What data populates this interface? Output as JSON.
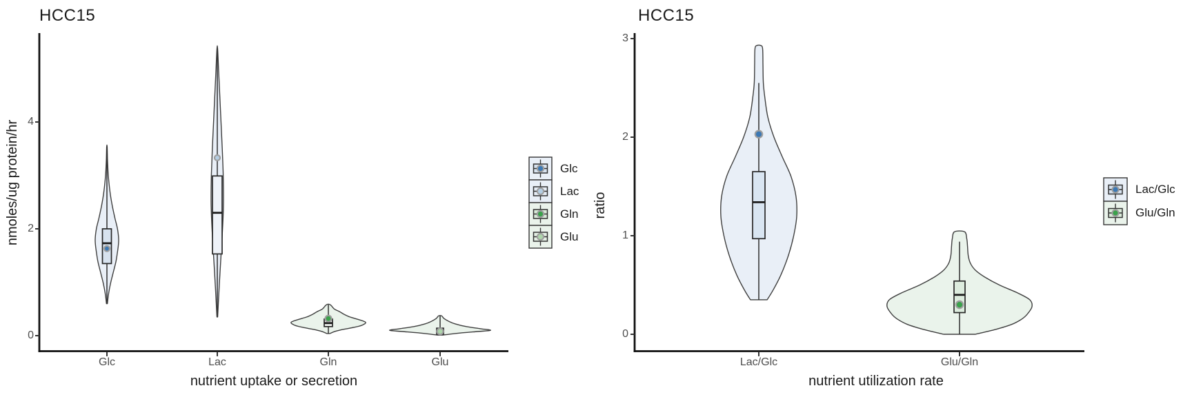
{
  "colors": {
    "axis": "#111111",
    "tick_mark": "#333333",
    "tick_label": "#4d4d4d",
    "text": "#1a1a1a",
    "violin_outline": "#3e3e3e",
    "box_stroke": "#272727",
    "median": "#1a1a1a",
    "mean_dot_ring": "#9e9e9e",
    "blue_fill": "#e9eff7",
    "green_fill": "#eaf3eb",
    "blue_dot": "#3c79b5",
    "light_blue_dot": "#b4cee4",
    "green_dot": "#3aa24b",
    "light_green_dot": "#add5aa"
  },
  "chart_data": [
    {
      "type": "violin",
      "title": "HCC15",
      "xlabel": "nutrient uptake or secretion",
      "ylabel": "nmoles/ug protein/hr",
      "ylim": [
        0,
        5.6
      ],
      "yticks": [
        0,
        2,
        4
      ],
      "grid": false,
      "legend_position": "right",
      "categories": [
        "Glc",
        "Lac",
        "Gln",
        "Glu"
      ],
      "series": [
        {
          "name": "Glc",
          "fill": "#e9eff7",
          "box_fill": "#d7e2ef",
          "mean_color": "#3c79b5",
          "stats": {
            "min": 0.6,
            "q1": 1.35,
            "median": 1.73,
            "q3": 2.0,
            "max": 3.54,
            "mean": 1.63
          },
          "whisker_low": 0.6,
          "whisker_high": 3.54,
          "density_profile": [
            [
              0.6,
              0.04
            ],
            [
              0.75,
              0.12
            ],
            [
              0.95,
              0.28
            ],
            [
              1.15,
              0.5
            ],
            [
              1.4,
              0.78
            ],
            [
              1.65,
              0.95
            ],
            [
              1.8,
              1.0
            ],
            [
              2.0,
              0.9
            ],
            [
              2.2,
              0.68
            ],
            [
              2.45,
              0.44
            ],
            [
              2.7,
              0.26
            ],
            [
              3.0,
              0.12
            ],
            [
              3.3,
              0.05
            ],
            [
              3.54,
              0.02
            ]
          ]
        },
        {
          "name": "Lac",
          "fill": "#e9eff7",
          "box_fill": "#eef2f8",
          "mean_color": "#b4cee4",
          "stats": {
            "min": 0.35,
            "q1": 1.53,
            "median": 2.3,
            "q3": 2.99,
            "max": 5.38,
            "mean": 3.33
          },
          "whisker_low": 0.35,
          "whisker_high": 5.38,
          "density_profile": [
            [
              0.35,
              0.06
            ],
            [
              0.9,
              0.3
            ],
            [
              1.5,
              0.6
            ],
            [
              2.0,
              0.85
            ],
            [
              2.5,
              1.0
            ],
            [
              3.0,
              0.95
            ],
            [
              3.5,
              0.8
            ],
            [
              4.0,
              0.6
            ],
            [
              4.5,
              0.4
            ],
            [
              5.0,
              0.2
            ],
            [
              5.38,
              0.05
            ]
          ]
        },
        {
          "name": "Gln",
          "fill": "#eaf3eb",
          "box_fill": "#f4f8f4",
          "mean_color": "#3aa24b",
          "stats": {
            "min": 0.04,
            "q1": 0.17,
            "median": 0.235,
            "q3": 0.31,
            "max": 0.58,
            "mean": 0.32
          },
          "whisker_low": 0.04,
          "whisker_high": 0.58,
          "density_profile": [
            [
              0.04,
              0.04
            ],
            [
              0.08,
              0.18
            ],
            [
              0.12,
              0.42
            ],
            [
              0.16,
              0.72
            ],
            [
              0.2,
              0.92
            ],
            [
              0.25,
              1.0
            ],
            [
              0.3,
              0.82
            ],
            [
              0.35,
              0.58
            ],
            [
              0.4,
              0.42
            ],
            [
              0.45,
              0.3
            ],
            [
              0.5,
              0.16
            ],
            [
              0.58,
              0.05
            ]
          ]
        },
        {
          "name": "Glu",
          "fill": "#eaf3eb",
          "box_fill": "#eaf2ea",
          "mean_color": "#add5aa",
          "stats": {
            "min": 0.01,
            "q1": 0.03,
            "median": 0.085,
            "q3": 0.14,
            "max": 0.37,
            "mean": 0.08
          },
          "whisker_low": 0.01,
          "whisker_high": 0.37,
          "density_profile": [
            [
              0.01,
              0.05
            ],
            [
              0.04,
              0.3
            ],
            [
              0.07,
              0.65
            ],
            [
              0.1,
              1.0
            ],
            [
              0.13,
              0.8
            ],
            [
              0.17,
              0.52
            ],
            [
              0.22,
              0.3
            ],
            [
              0.27,
              0.17
            ],
            [
              0.32,
              0.08
            ],
            [
              0.37,
              0.03
            ]
          ]
        }
      ],
      "legend": [
        {
          "label": "Glc",
          "swatch_bg": "#e9eff7",
          "box_fill": "#d7e2ef",
          "dot_color": "#3c79b5"
        },
        {
          "label": "Lac",
          "swatch_bg": "#e9eff7",
          "box_fill": "#e6edf6",
          "dot_color": "#b4cee4"
        },
        {
          "label": "Gln",
          "swatch_bg": "#eaf3eb",
          "box_fill": "#d9ead9",
          "dot_color": "#3aa24b"
        },
        {
          "label": "Glu",
          "swatch_bg": "#eaf3eb",
          "box_fill": "#e4f0e4",
          "dot_color": "#add5aa"
        }
      ]
    },
    {
      "type": "violin",
      "title": "HCC15",
      "xlabel": "nutrient utilization rate",
      "ylabel": "ratio",
      "ylim": [
        0,
        3.2
      ],
      "yticks": [
        0,
        1,
        2,
        3
      ],
      "grid": false,
      "legend_position": "right",
      "categories": [
        "Lac/Glc",
        "Glu/Gln"
      ],
      "series": [
        {
          "name": "Lac/Glc",
          "fill": "#e9eff7",
          "box_fill": "#d9e5f2",
          "mean_color": "#3c79b5",
          "stats": {
            "min": 0.35,
            "q1": 0.97,
            "median": 1.34,
            "q3": 1.65,
            "max": 2.93,
            "mean": 2.03
          },
          "whisker_low": 0.35,
          "whisker_high": 2.55,
          "density_profile": [
            [
              0.35,
              0.22
            ],
            [
              0.45,
              0.38
            ],
            [
              0.6,
              0.58
            ],
            [
              0.8,
              0.78
            ],
            [
              1.0,
              0.92
            ],
            [
              1.2,
              1.0
            ],
            [
              1.4,
              0.98
            ],
            [
              1.6,
              0.85
            ],
            [
              1.8,
              0.62
            ],
            [
              2.0,
              0.4
            ],
            [
              2.2,
              0.24
            ],
            [
              2.4,
              0.16
            ],
            [
              2.55,
              0.12
            ],
            [
              2.75,
              0.11
            ],
            [
              2.9,
              0.1
            ],
            [
              2.93,
              0.05
            ]
          ]
        },
        {
          "name": "Glu/Gln",
          "fill": "#eaf3eb",
          "box_fill": "#ddecde",
          "mean_color": "#3aa24b",
          "stats": {
            "min": 0.0,
            "q1": 0.22,
            "median": 0.4,
            "q3": 0.54,
            "max": 1.04,
            "mean": 0.3
          },
          "whisker_low": 0.0,
          "whisker_high": 0.94,
          "density_profile": [
            [
              0.0,
              0.22
            ],
            [
              0.05,
              0.5
            ],
            [
              0.1,
              0.72
            ],
            [
              0.15,
              0.85
            ],
            [
              0.2,
              0.93
            ],
            [
              0.28,
              1.0
            ],
            [
              0.35,
              0.97
            ],
            [
              0.42,
              0.8
            ],
            [
              0.5,
              0.55
            ],
            [
              0.58,
              0.35
            ],
            [
              0.65,
              0.22
            ],
            [
              0.72,
              0.15
            ],
            [
              0.8,
              0.12
            ],
            [
              0.9,
              0.11
            ],
            [
              0.97,
              0.1
            ],
            [
              1.04,
              0.07
            ]
          ]
        }
      ],
      "legend": [
        {
          "label": "Lac/Glc",
          "swatch_bg": "#e9eff7",
          "box_fill": "#d7e2ef",
          "dot_color": "#3c79b5"
        },
        {
          "label": "Glu/Gln",
          "swatch_bg": "#eaf3eb",
          "box_fill": "#d9ead9",
          "dot_color": "#3aa24b"
        }
      ]
    }
  ]
}
